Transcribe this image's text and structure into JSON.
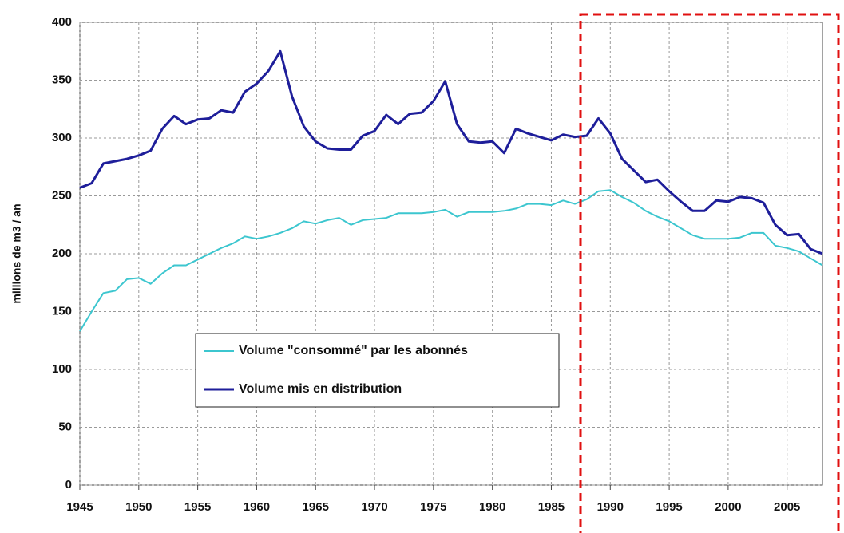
{
  "chart_data": {
    "type": "line",
    "y_label": "millions de m3 / an",
    "x": [
      1945,
      1946,
      1947,
      1948,
      1949,
      1950,
      1951,
      1952,
      1953,
      1954,
      1955,
      1956,
      1957,
      1958,
      1959,
      1960,
      1961,
      1962,
      1963,
      1964,
      1965,
      1966,
      1967,
      1968,
      1969,
      1970,
      1971,
      1972,
      1973,
      1974,
      1975,
      1976,
      1977,
      1978,
      1979,
      1980,
      1981,
      1982,
      1983,
      1984,
      1985,
      1986,
      1987,
      1988,
      1989,
      1990,
      1991,
      1992,
      1993,
      1994,
      1995,
      1996,
      1997,
      1998,
      1999,
      2000,
      2001,
      2002,
      2003,
      2004,
      2005,
      2006,
      2007,
      2008
    ],
    "series": [
      {
        "name": "Volume \"consommé\" par les abonnés",
        "color": "#3cc6cf",
        "values": [
          133,
          150,
          166,
          168,
          178,
          179,
          174,
          183,
          190,
          190,
          195,
          200,
          205,
          209,
          215,
          213,
          215,
          218,
          222,
          228,
          226,
          229,
          231,
          225,
          229,
          230,
          231,
          235,
          235,
          235,
          236,
          238,
          232,
          236,
          236,
          236,
          237,
          239,
          243,
          243,
          242,
          246,
          243,
          247,
          254,
          255,
          249,
          244,
          237,
          232,
          228,
          222,
          216,
          213,
          213,
          213,
          214,
          218,
          218,
          207,
          205,
          202,
          196,
          190
        ]
      },
      {
        "name": "Volume mis en distribution",
        "color": "#1e1e9a",
        "values": [
          257,
          261,
          278,
          280,
          282,
          285,
          289,
          308,
          319,
          312,
          316,
          317,
          324,
          322,
          340,
          347,
          358,
          375,
          336,
          310,
          297,
          291,
          290,
          290,
          302,
          306,
          320,
          312,
          321,
          322,
          332,
          349,
          312,
          297,
          296,
          297,
          287,
          308,
          304,
          301,
          298,
          303,
          301,
          302,
          317,
          304,
          282,
          272,
          262,
          264,
          254,
          245,
          237,
          237,
          246,
          245,
          249,
          248,
          244,
          225,
          216,
          217,
          204,
          200
        ]
      }
    ],
    "xlim": [
      1945,
      2008
    ],
    "ylim": [
      0,
      400
    ],
    "xticks": [
      1945,
      1950,
      1955,
      1960,
      1965,
      1970,
      1975,
      1980,
      1985,
      1990,
      1995,
      2000,
      2005
    ],
    "yticks": [
      0,
      50,
      100,
      150,
      200,
      250,
      300,
      350,
      400
    ],
    "grid": true,
    "legend": "lower left"
  }
}
